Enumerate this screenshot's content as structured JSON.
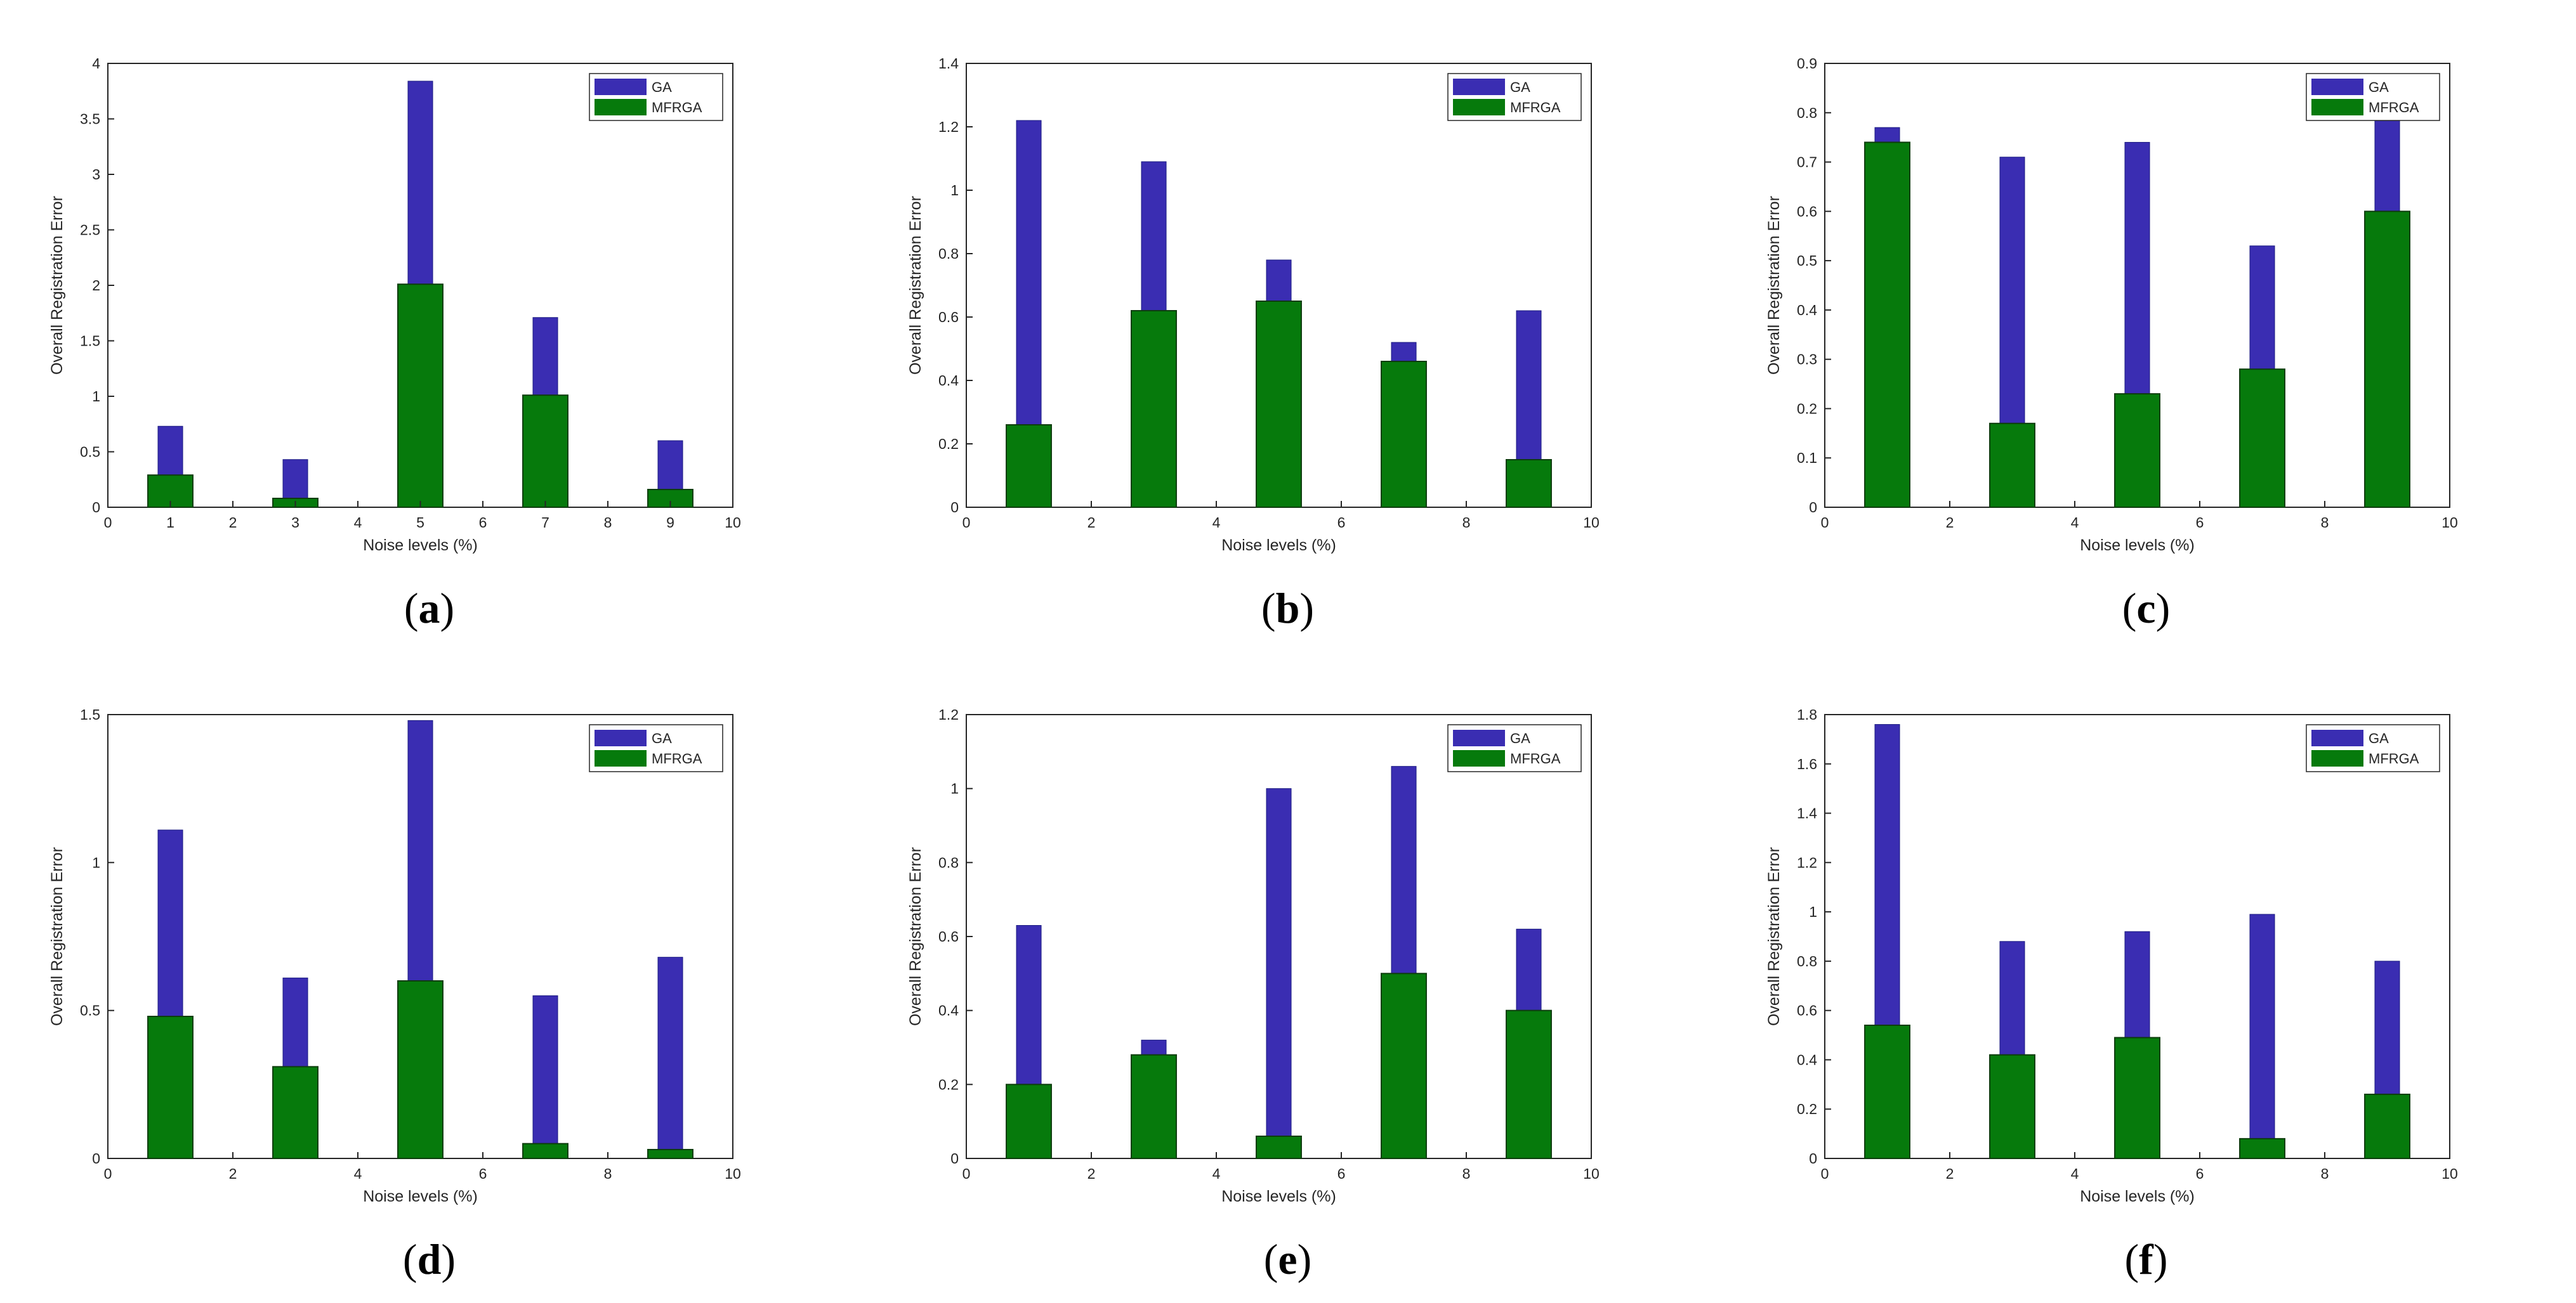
{
  "colors": {
    "GA": "#3a2db2",
    "MFRGA": "#067a0c"
  },
  "chart_data": [
    {
      "label": "a",
      "type": "bar",
      "xlabel": "Noise levels (%)",
      "ylabel": "Overall Registration Error",
      "xlim": [
        0,
        10
      ],
      "xticks": [
        0,
        1,
        2,
        3,
        4,
        5,
        6,
        7,
        8,
        9,
        10
      ],
      "xtick_labels": [
        "0",
        "1",
        "2",
        "3",
        "4",
        "5",
        "6",
        "7",
        "8",
        "9",
        "10"
      ],
      "ylim": [
        0,
        4
      ],
      "yticks": [
        0,
        0.5,
        1,
        1.5,
        2,
        2.5,
        3,
        3.5,
        4
      ],
      "ytick_labels": [
        "0",
        "0.5",
        "1",
        "1.5",
        "2",
        "2.5",
        "3",
        "3.5",
        "4"
      ],
      "categories": [
        1,
        3,
        5,
        7,
        9
      ],
      "series": [
        {
          "name": "GA",
          "values": [
            0.73,
            0.43,
            3.84,
            1.71,
            0.6
          ]
        },
        {
          "name": "MFRGA",
          "values": [
            0.29,
            0.08,
            2.01,
            1.01,
            0.16
          ]
        }
      ],
      "legend": "top-right"
    },
    {
      "label": "b",
      "type": "bar",
      "xlabel": "Noise levels (%)",
      "ylabel": "Overall Registration Error",
      "xlim": [
        0,
        10
      ],
      "xticks": [
        0,
        2,
        4,
        6,
        8,
        10
      ],
      "xtick_labels": [
        "0",
        "2",
        "4",
        "6",
        "8",
        "10"
      ],
      "ylim": [
        0,
        1.4
      ],
      "yticks": [
        0,
        0.2,
        0.4,
        0.6,
        0.8,
        1,
        1.2,
        1.4
      ],
      "ytick_labels": [
        "0",
        "0.2",
        "0.4",
        "0.6",
        "0.8",
        "1",
        "1.2",
        "1.4"
      ],
      "categories": [
        1,
        3,
        5,
        7,
        9
      ],
      "series": [
        {
          "name": "GA",
          "values": [
            1.22,
            1.09,
            0.78,
            0.52,
            0.62
          ]
        },
        {
          "name": "MFRGA",
          "values": [
            0.26,
            0.62,
            0.65,
            0.46,
            0.15
          ]
        }
      ],
      "legend": "top-right"
    },
    {
      "label": "c",
      "type": "bar",
      "xlabel": "Noise levels (%)",
      "ylabel": "Overall Registration Error",
      "xlim": [
        0,
        10
      ],
      "xticks": [
        0,
        2,
        4,
        6,
        8,
        10
      ],
      "xtick_labels": [
        "0",
        "2",
        "4",
        "6",
        "8",
        "10"
      ],
      "ylim": [
        0,
        0.9
      ],
      "yticks": [
        0,
        0.1,
        0.2,
        0.3,
        0.4,
        0.5,
        0.6,
        0.7,
        0.8,
        0.9
      ],
      "ytick_labels": [
        "0",
        "0.1",
        "0.2",
        "0.3",
        "0.4",
        "0.5",
        "0.6",
        "0.7",
        "0.8",
        "0.9"
      ],
      "categories": [
        1,
        3,
        5,
        7,
        9
      ],
      "series": [
        {
          "name": "GA",
          "values": [
            0.77,
            0.71,
            0.74,
            0.53,
            0.8
          ]
        },
        {
          "name": "MFRGA",
          "values": [
            0.74,
            0.17,
            0.23,
            0.28,
            0.6
          ]
        }
      ],
      "legend": "top-right"
    },
    {
      "label": "d",
      "type": "bar",
      "xlabel": "Noise levels (%)",
      "ylabel": "Overall Registration Error",
      "xlim": [
        0,
        10
      ],
      "xticks": [
        0,
        2,
        4,
        6,
        8,
        10
      ],
      "xtick_labels": [
        "0",
        "2",
        "4",
        "6",
        "8",
        "10"
      ],
      "ylim": [
        0,
        1.5
      ],
      "yticks": [
        0,
        0.5,
        1,
        1.5
      ],
      "ytick_labels": [
        "0",
        "0.5",
        "1",
        "1.5"
      ],
      "categories": [
        1,
        3,
        5,
        7,
        9
      ],
      "series": [
        {
          "name": "GA",
          "values": [
            1.11,
            0.61,
            1.48,
            0.55,
            0.68
          ]
        },
        {
          "name": "MFRGA",
          "values": [
            0.48,
            0.31,
            0.6,
            0.05,
            0.03
          ]
        }
      ],
      "legend": "top-right"
    },
    {
      "label": "e",
      "type": "bar",
      "xlabel": "Noise levels (%)",
      "ylabel": "Overall Registration Error",
      "xlim": [
        0,
        10
      ],
      "xticks": [
        0,
        2,
        4,
        6,
        8,
        10
      ],
      "xtick_labels": [
        "0",
        "2",
        "4",
        "6",
        "8",
        "10"
      ],
      "ylim": [
        0,
        1.2
      ],
      "yticks": [
        0,
        0.2,
        0.4,
        0.6,
        0.8,
        1,
        1.2
      ],
      "ytick_labels": [
        "0",
        "0.2",
        "0.4",
        "0.6",
        "0.8",
        "1",
        "1.2"
      ],
      "categories": [
        1,
        3,
        5,
        7,
        9
      ],
      "series": [
        {
          "name": "GA",
          "values": [
            0.63,
            0.32,
            1.0,
            1.06,
            0.62
          ]
        },
        {
          "name": "MFRGA",
          "values": [
            0.2,
            0.28,
            0.06,
            0.5,
            0.4
          ]
        }
      ],
      "legend": "top-right"
    },
    {
      "label": "f",
      "type": "bar",
      "xlabel": "Noise levels (%)",
      "ylabel": "Overall Registration Error",
      "xlim": [
        0,
        10
      ],
      "xticks": [
        0,
        2,
        4,
        6,
        8,
        10
      ],
      "xtick_labels": [
        "0",
        "2",
        "4",
        "6",
        "8",
        "10"
      ],
      "ylim": [
        0,
        1.8
      ],
      "yticks": [
        0,
        0.2,
        0.4,
        0.6,
        0.8,
        1,
        1.2,
        1.4,
        1.6,
        1.8
      ],
      "ytick_labels": [
        "0",
        "0.2",
        "0.4",
        "0.6",
        "0.8",
        "1",
        "1.2",
        "1.4",
        "1.6",
        "1.8"
      ],
      "categories": [
        1,
        3,
        5,
        7,
        9
      ],
      "series": [
        {
          "name": "GA",
          "values": [
            1.76,
            0.88,
            0.92,
            0.99,
            0.8
          ]
        },
        {
          "name": "MFRGA",
          "values": [
            0.54,
            0.42,
            0.49,
            0.08,
            0.26
          ]
        }
      ],
      "legend": "top-right"
    }
  ]
}
